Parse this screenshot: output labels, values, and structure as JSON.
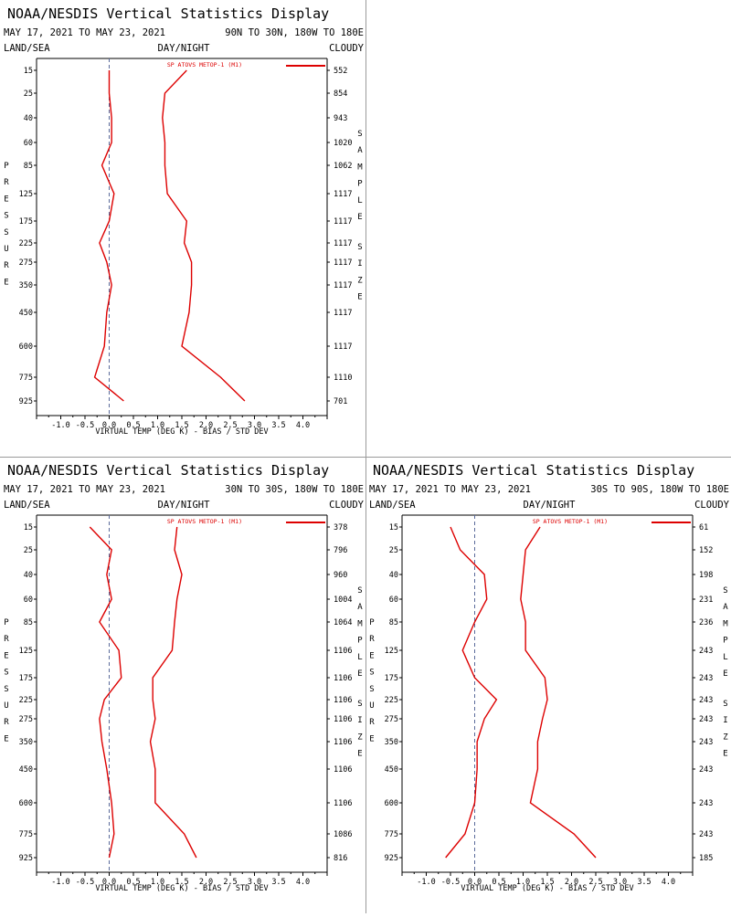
{
  "display_title": "NOAA/NESDIS Vertical Statistics Display",
  "date_range": "MAY 17, 2021 TO MAY 23, 2021",
  "land_sea": "LAND/SEA",
  "day_night": "DAY/NIGHT",
  "cloudy": "CLOUDY",
  "x_axis_label": "VIRTUAL TEMP (DEG K) - BIAS / STD DEV",
  "pressure_letters": [
    "P",
    "R",
    "E",
    "S",
    "S",
    "U",
    "R",
    "E"
  ],
  "sample_letters": [
    "S",
    "A",
    "M",
    "P",
    "L",
    "E"
  ],
  "size_letters": [
    "S",
    "I",
    "Z",
    "E"
  ],
  "colors": {
    "series": "#dd0000",
    "axis": "#000000",
    "zero_line": "#5a6a9a",
    "divider": "#9a9a9a"
  },
  "chart_data": [
    {
      "type": "line",
      "region": "90N TO 30N, 180W TO 180E",
      "series": [
        {
          "name": "SP ATOVS METOP-1 (M1)",
          "bias": [
            0.0,
            0.0,
            0.05,
            0.05,
            -0.15,
            0.1,
            0.0,
            -0.2,
            -0.05,
            0.05,
            -0.05,
            -0.1,
            -0.3,
            0.3
          ],
          "stddev": [
            1.6,
            1.15,
            1.1,
            1.15,
            1.15,
            1.2,
            1.6,
            1.55,
            1.7,
            1.7,
            1.65,
            1.5,
            2.3,
            2.8
          ]
        }
      ],
      "pressure_levels": [
        15,
        25,
        40,
        60,
        85,
        125,
        175,
        225,
        275,
        350,
        450,
        600,
        775,
        925
      ],
      "sample_size": [
        552,
        854,
        943,
        1020,
        1062,
        1117,
        1117,
        1117,
        1117,
        1117,
        1117,
        1117,
        1110,
        701
      ],
      "x_ticks": [
        "-1.0",
        "-0.5",
        "0.0",
        "0.5",
        "1.0",
        "1.5",
        "2.0",
        "2.5",
        "3.0",
        "3.5",
        "4.0"
      ],
      "xlim": [
        -1.5,
        4.5
      ]
    },
    {
      "type": "line",
      "region": "30N TO 30S, 180W TO 180E",
      "series": [
        {
          "name": "SP ATOVS METOP-1 (M1)",
          "bias": [
            -0.4,
            0.05,
            -0.05,
            0.05,
            -0.2,
            0.2,
            0.25,
            -0.1,
            -0.2,
            -0.15,
            -0.05,
            0.05,
            0.1,
            0.0
          ],
          "stddev": [
            1.4,
            1.35,
            1.5,
            1.4,
            1.35,
            1.3,
            0.9,
            0.9,
            0.95,
            0.85,
            0.95,
            0.95,
            1.55,
            1.8
          ]
        }
      ],
      "pressure_levels": [
        15,
        25,
        40,
        60,
        85,
        125,
        175,
        225,
        275,
        350,
        450,
        600,
        775,
        925
      ],
      "sample_size": [
        378,
        796,
        960,
        1004,
        1064,
        1106,
        1106,
        1106,
        1106,
        1106,
        1106,
        1106,
        1086,
        816
      ],
      "x_ticks": [
        "-1.0",
        "-0.5",
        "0.0",
        "0.5",
        "1.0",
        "1.5",
        "2.0",
        "2.5",
        "3.0",
        "3.5",
        "4.0"
      ],
      "xlim": [
        -1.5,
        4.5
      ]
    },
    {
      "type": "line",
      "region": "30S TO 90S, 180W TO 180E",
      "series": [
        {
          "name": "SP ATOVS METOP-1 (M1)",
          "bias": [
            -0.5,
            -0.3,
            0.2,
            0.25,
            0.0,
            -0.25,
            0.0,
            0.45,
            0.2,
            0.05,
            0.05,
            0.0,
            -0.2,
            -0.6
          ],
          "stddev": [
            1.35,
            1.05,
            1.0,
            0.95,
            1.05,
            1.05,
            1.45,
            1.5,
            1.4,
            1.3,
            1.3,
            1.15,
            2.05,
            2.5
          ]
        }
      ],
      "pressure_levels": [
        15,
        25,
        40,
        60,
        85,
        125,
        175,
        225,
        275,
        350,
        450,
        600,
        775,
        925
      ],
      "sample_size": [
        61,
        152,
        198,
        231,
        236,
        243,
        243,
        243,
        243,
        243,
        243,
        243,
        243,
        185
      ],
      "x_ticks": [
        "-1.0",
        "-0.5",
        "0.0",
        "0.5",
        "1.0",
        "1.5",
        "2.0",
        "2.5",
        "3.0",
        "3.5",
        "4.0"
      ],
      "xlim": [
        -1.5,
        4.5
      ]
    }
  ]
}
